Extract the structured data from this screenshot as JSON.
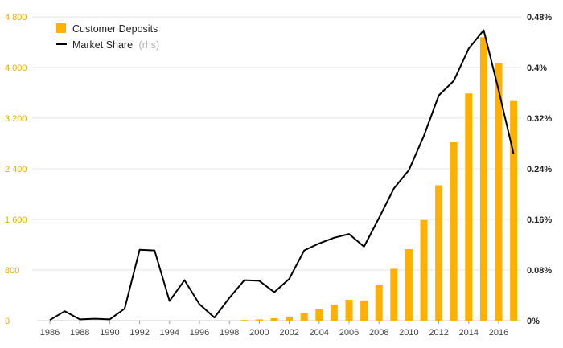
{
  "colors": {
    "bar": "#ffb000",
    "line": "#000000",
    "grid": "#e6e6e6",
    "left_axis_text": "#f0a800",
    "right_axis_text": "#222222",
    "legend_suffix": "#b0b0b0"
  },
  "chart_data": {
    "type": "bar",
    "title": "",
    "xlabel": "",
    "ylabel": "",
    "grid": true,
    "legend_position": "top-left",
    "x_tick_labels": [
      "1986",
      "1988",
      "1990",
      "1992",
      "1994",
      "1996",
      "1998",
      "2000",
      "2002",
      "2004",
      "2006",
      "2008",
      "2010",
      "2012",
      "2014",
      "2016"
    ],
    "y_left": {
      "ylim": [
        0,
        4800
      ],
      "tick_labels": [
        "0",
        "800",
        "1 600",
        "2 400",
        "3 200",
        "4 000",
        "4 800"
      ]
    },
    "y_right": {
      "ylim": [
        0,
        0.48
      ],
      "unit": "%",
      "tick_labels": [
        "0%",
        "0.08%",
        "0.16%",
        "0.24%",
        "0.32%",
        "0.4%",
        "0.48%"
      ]
    },
    "legend": {
      "bar_label": "Customer Deposits",
      "line_label": "Market Share",
      "line_suffix": "(rhs)"
    },
    "x": [
      1986,
      1987,
      1988,
      1989,
      1990,
      1991,
      1992,
      1993,
      1994,
      1995,
      1996,
      1997,
      1998,
      1999,
      2000,
      2001,
      2002,
      2003,
      2004,
      2005,
      2006,
      2007,
      2008,
      2009,
      2010,
      2011,
      2012,
      2013,
      2014,
      2015,
      2016,
      2017
    ],
    "series": [
      {
        "name": "Customer Deposits",
        "type": "bar",
        "axis": "left",
        "values": [
          0,
          0,
          0,
          0,
          0,
          0,
          0,
          0,
          0,
          0,
          0,
          0,
          0,
          10,
          20,
          40,
          65,
          120,
          180,
          250,
          330,
          320,
          570,
          820,
          1130,
          1590,
          2140,
          2820,
          3590,
          4480,
          4070,
          3470
        ]
      },
      {
        "name": "Market Share",
        "type": "line",
        "axis": "right",
        "values": [
          0.001,
          0.015,
          0.002,
          0.003,
          0.002,
          0.019,
          0.112,
          0.111,
          0.031,
          0.064,
          0.026,
          0.005,
          0.036,
          0.064,
          0.063,
          0.045,
          0.066,
          0.111,
          0.122,
          0.131,
          0.137,
          0.117,
          0.162,
          0.209,
          0.238,
          0.292,
          0.356,
          0.379,
          0.43,
          0.459,
          0.364,
          0.263
        ]
      }
    ]
  }
}
